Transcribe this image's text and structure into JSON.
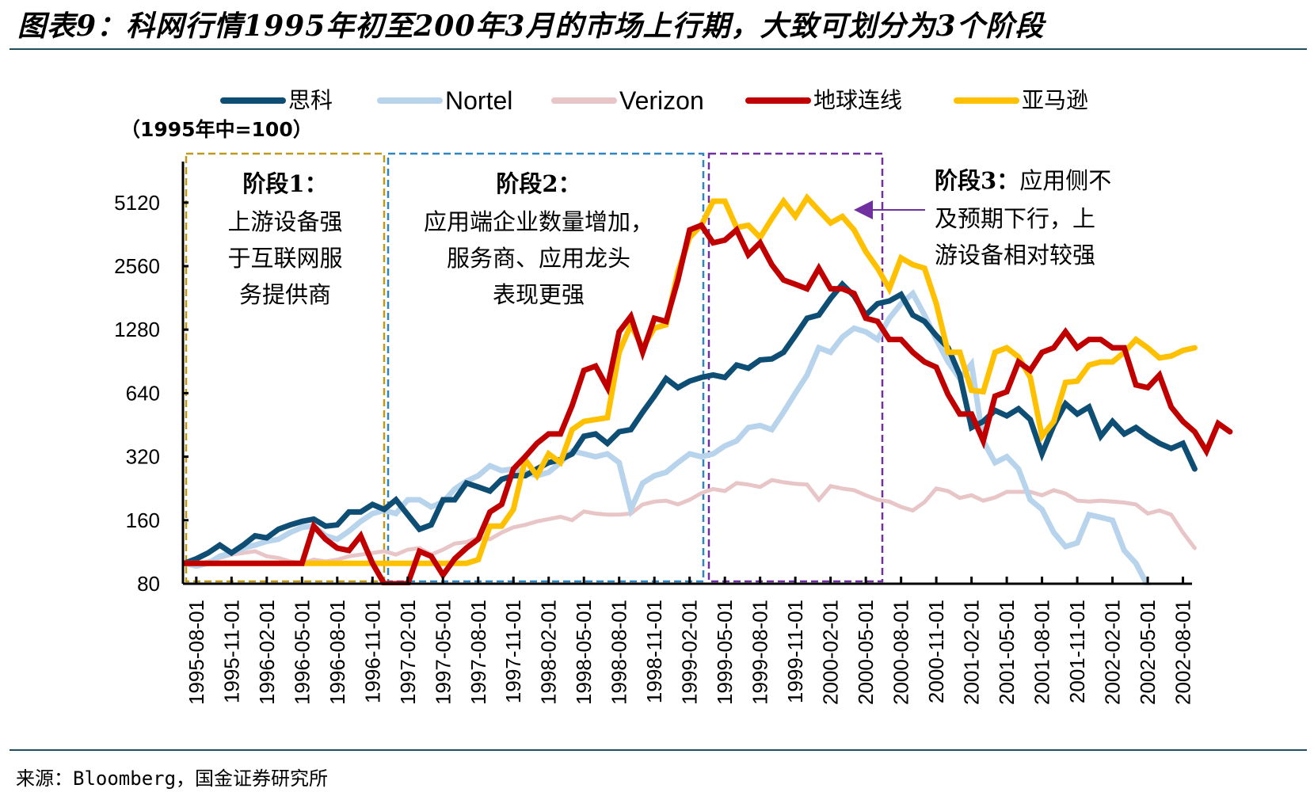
{
  "header": {
    "title": "图表9：科网行情1995年初至200年3月的市场上行期，大致可划分为3个阶段"
  },
  "footer": {
    "source": "来源：Bloomberg，国金证券研究所"
  },
  "chart_data": {
    "type": "line",
    "title": "图表9：科网行情1995年初至200年3月的市场上行期，大致可划分为3个阶段",
    "ylabel": "（1995年中=100）",
    "xlabel": "",
    "yscale": "log2",
    "ylim": [
      80,
      7000
    ],
    "yticks": [
      80,
      160,
      320,
      640,
      1280,
      2560,
      5120
    ],
    "ytick_labels": [
      "80",
      "160",
      "320",
      "640",
      "1280",
      "2560",
      "5120"
    ],
    "xtick_labels": [
      "1995-08-01",
      "1995-11-01",
      "1996-02-01",
      "1996-05-01",
      "1996-08-01",
      "1996-11-01",
      "1997-02-01",
      "1997-05-01",
      "1997-08-01",
      "1997-11-01",
      "1998-02-01",
      "1998-05-01",
      "1998-08-01",
      "1998-11-01",
      "1999-02-01",
      "1999-05-01",
      "1999-08-01",
      "1999-11-01",
      "2000-02-01",
      "2000-05-01",
      "2000-08-01",
      "2000-11-01",
      "2001-02-01",
      "2001-05-01",
      "2001-08-01",
      "2001-11-01",
      "2002-02-01",
      "2002-05-01",
      "2002-08-01"
    ],
    "x_start": "1995-07",
    "x_step": "1 month",
    "grid": false,
    "legend_position": "top",
    "series": [
      {
        "name": "思科",
        "color": "#0e4e74",
        "width": 7,
        "values": [
          100,
          105,
          112,
          122,
          112,
          122,
          135,
          132,
          145,
          152,
          158,
          162,
          150,
          152,
          175,
          175,
          190,
          180,
          200,
          170,
          145,
          152,
          200,
          200,
          240,
          230,
          220,
          250,
          260,
          260,
          280,
          300,
          310,
          330,
          400,
          410,
          370,
          420,
          430,
          520,
          620,
          750,
          680,
          730,
          760,
          780,
          760,
          870,
          840,
          920,
          930,
          1000,
          1200,
          1450,
          1500,
          1800,
          2100,
          1850,
          1500,
          1700,
          1750,
          1880,
          1500,
          1400,
          1200,
          1050,
          780,
          440,
          470,
          530,
          500,
          540,
          480,
          330,
          450,
          570,
          510,
          550,
          400,
          470,
          410,
          440,
          400,
          370,
          350,
          370,
          280
        ]
      },
      {
        "name": "Nortel",
        "color": "#b8d4ec",
        "width": 7,
        "values": [
          100,
          97,
          100,
          108,
          112,
          118,
          122,
          127,
          130,
          140,
          148,
          150,
          135,
          130,
          142,
          158,
          172,
          178,
          172,
          200,
          200,
          185,
          195,
          225,
          245,
          260,
          290,
          275,
          280,
          270,
          260,
          270,
          300,
          340,
          330,
          320,
          330,
          300,
          180,
          240,
          260,
          270,
          300,
          330,
          320,
          330,
          360,
          380,
          440,
          450,
          430,
          520,
          640,
          780,
          1050,
          1000,
          1180,
          1300,
          1250,
          1150,
          1450,
          1700,
          1900,
          1500,
          1150,
          900,
          750,
          880,
          380,
          300,
          320,
          280,
          200,
          180,
          140,
          120,
          125,
          170,
          165,
          160,
          115,
          100,
          78,
          70,
          65,
          60,
          55
        ]
      },
      {
        "name": "Verizon",
        "color": "#e8c5c7",
        "width": 5,
        "values": [
          100,
          98,
          102,
          106,
          110,
          112,
          114,
          108,
          106,
          102,
          100,
          104,
          102,
          104,
          108,
          110,
          112,
          114,
          110,
          116,
          118,
          110,
          116,
          124,
          126,
          132,
          130,
          140,
          148,
          152,
          158,
          162,
          166,
          160,
          176,
          172,
          170,
          170,
          172,
          190,
          196,
          198,
          190,
          200,
          215,
          225,
          220,
          240,
          236,
          230,
          248,
          242,
          238,
          236,
          200,
          232,
          226,
          222,
          210,
          200,
          196,
          185,
          178,
          195,
          226,
          220,
          204,
          210,
          198,
          205,
          218,
          218,
          218,
          210,
          222,
          214,
          198,
          196,
          198,
          196,
          194,
          190,
          172,
          178,
          170,
          140,
          118
        ]
      },
      {
        "name": "地球连线",
        "color": "#c00000",
        "width": 7,
        "values": [
          100,
          100,
          100,
          100,
          100,
          100,
          100,
          100,
          100,
          100,
          100,
          150,
          130,
          118,
          115,
          135,
          100,
          80,
          80,
          80,
          114,
          108,
          88,
          105,
          118,
          130,
          175,
          190,
          280,
          320,
          370,
          410,
          410,
          560,
          820,
          860,
          680,
          1250,
          1480,
          1000,
          1450,
          1400,
          2200,
          3800,
          4000,
          3300,
          3400,
          3800,
          2900,
          3300,
          2600,
          2200,
          2100,
          2000,
          2500,
          2000,
          2000,
          1900,
          1450,
          1400,
          1150,
          1150,
          1000,
          900,
          850,
          630,
          510,
          510,
          380,
          620,
          650,
          900,
          820,
          1000,
          1050,
          1250,
          1050,
          1150,
          1150,
          1050,
          1050,
          700,
          680,
          780,
          550,
          470,
          420,
          340,
          460,
          420
        ]
      },
      {
        "name": "亚马逊",
        "color": "#ffc000",
        "width": 7,
        "values": [
          100,
          100,
          100,
          100,
          100,
          100,
          100,
          100,
          100,
          100,
          100,
          100,
          100,
          100,
          100,
          100,
          100,
          100,
          100,
          100,
          100,
          100,
          100,
          100,
          100,
          104,
          150,
          150,
          180,
          310,
          260,
          330,
          300,
          430,
          470,
          480,
          490,
          1000,
          1350,
          1050,
          1300,
          1350,
          2400,
          3500,
          4000,
          5200,
          5200,
          3900,
          4000,
          3500,
          4300,
          5200,
          4400,
          5400,
          4700,
          4100,
          4400,
          3800,
          3000,
          2500,
          2000,
          2800,
          2600,
          2500,
          1700,
          1000,
          1000,
          660,
          650,
          1000,
          1050,
          950,
          760,
          400,
          470,
          720,
          730,
          870,
          900,
          900,
          1000,
          1150,
          1050,
          940,
          960,
          1020,
          1050
        ]
      }
    ],
    "annotations": [
      {
        "title": "阶段1：",
        "lines": [
          "上游设备强",
          "于互联网服",
          "务提供商"
        ],
        "box_color": "#bf9a1a",
        "range": [
          "1995-07",
          "1997-01"
        ]
      },
      {
        "title": "阶段2：",
        "lines": [
          "应用端企业数量增加，",
          "服务商、应用龙头",
          "表现更强"
        ],
        "box_color": "#2e86c1",
        "range": [
          "1997-01",
          "1999-04"
        ]
      },
      {
        "title": "阶段3：",
        "title_suffix": "应用侧不",
        "lines": [
          "及预期下行，上",
          "游设备相对较强"
        ],
        "box_color": "#7030a0",
        "range": [
          "1999-04",
          "2000-08"
        ]
      }
    ],
    "arrow_color": "#7030a0"
  }
}
